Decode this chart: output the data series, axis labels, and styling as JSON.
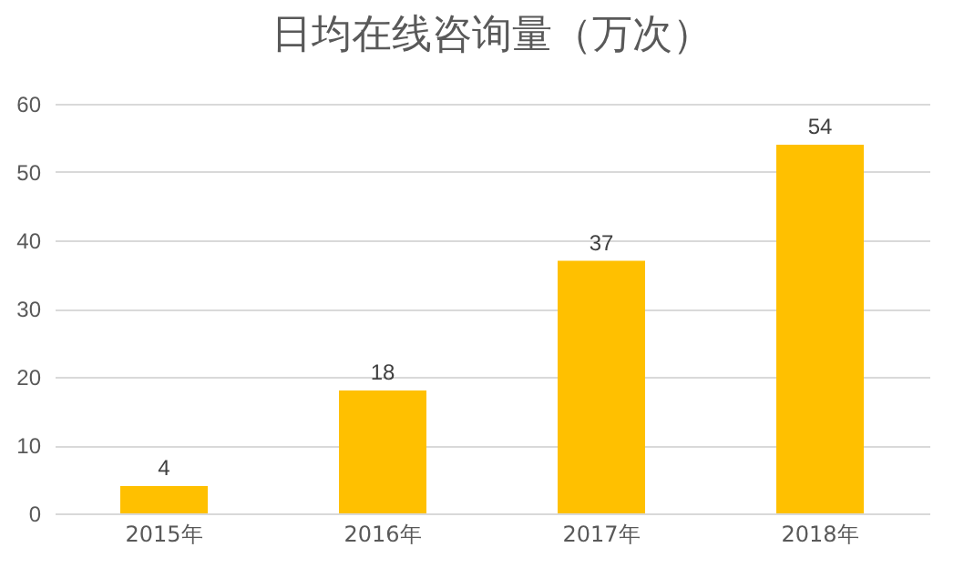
{
  "chart_data": {
    "type": "bar",
    "title": "日均在线咨询量（万次）",
    "categories": [
      "2015年",
      "2016年",
      "2017年",
      "2018年"
    ],
    "values": [
      4,
      18,
      37,
      54
    ],
    "color": "#ffc000",
    "ylim": [
      0,
      60
    ],
    "yticks": [
      0,
      10,
      20,
      30,
      40,
      50,
      60
    ],
    "grid": "y",
    "data_labels": true
  }
}
